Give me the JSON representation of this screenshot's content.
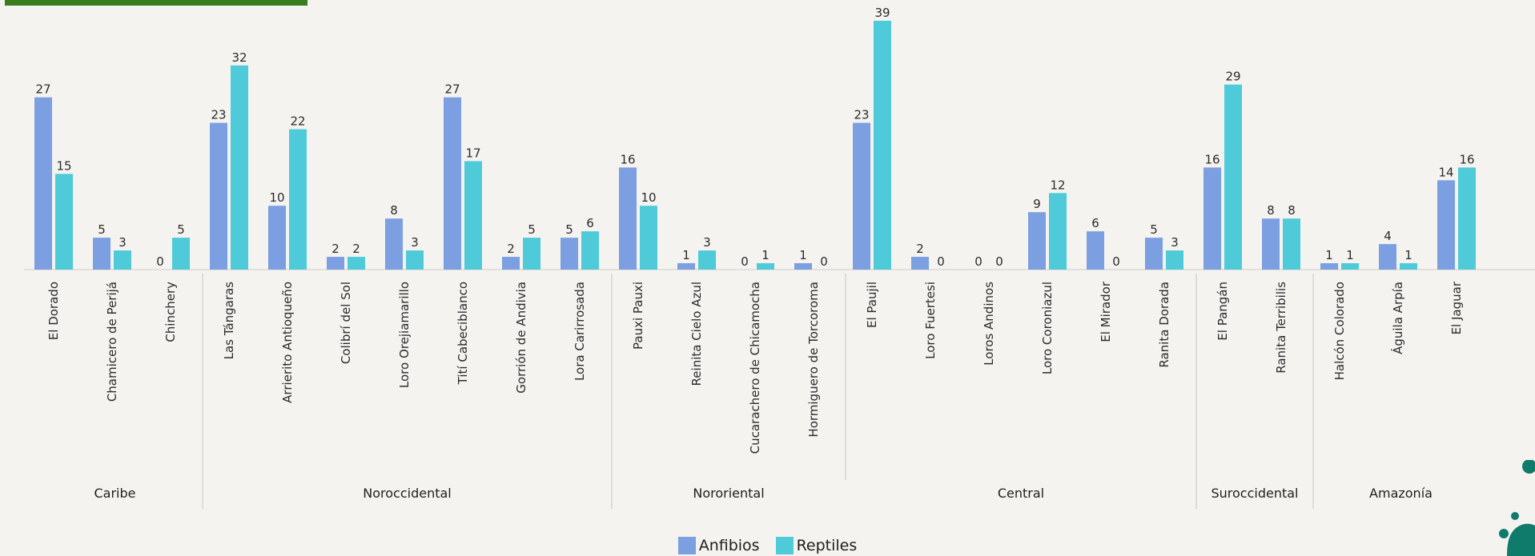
{
  "chart_data": {
    "type": "bar",
    "y_range": [
      0,
      41
    ],
    "grid": false,
    "legend_position": "bottom-center",
    "categories": [
      "El Dorado",
      "Chamicero de Perijá",
      "Chinchery",
      "Las Tángaras",
      "Arrierito Antioqueño",
      "Colibrí del Sol",
      "Loro Orejiamarillo",
      "Tití Cabeciblanco",
      "Gorrión de Andivia",
      "Lora Carirrosada",
      "Pauxi Pauxi",
      "Reinita Cielo Azul",
      "Cucarachero de Chicamocha",
      "Hormiguero de Torcoroma",
      "El Paujil",
      "Loro Fuertesi",
      "Loros Andinos",
      "Loro Coroniazul",
      "El Mirador",
      "Ranita Dorada",
      "El Pangán",
      "Ranita Terribilis",
      "Halcón Colorado",
      "Águila Arpía",
      "El Jaguar"
    ],
    "groups": [
      {
        "name": "Caribe",
        "count": 3
      },
      {
        "name": "Noroccidental",
        "count": 7
      },
      {
        "name": "Nororiental",
        "count": 4
      },
      {
        "name": "Central",
        "count": 6
      },
      {
        "name": "Suroccidental",
        "count": 2
      },
      {
        "name": "Amazonía",
        "count": 3
      }
    ],
    "series": [
      {
        "name": "Anfibios",
        "color": "#7b9fe0",
        "values": [
          27,
          5,
          0,
          23,
          10,
          2,
          8,
          27,
          2,
          5,
          16,
          1,
          0,
          1,
          23,
          2,
          0,
          9,
          6,
          5,
          16,
          8,
          1,
          4,
          14
        ]
      },
      {
        "name": "Reptiles",
        "color": "#4ecad9",
        "values": [
          15,
          3,
          5,
          32,
          22,
          2,
          3,
          17,
          5,
          6,
          10,
          3,
          1,
          0,
          39,
          0,
          0,
          12,
          0,
          3,
          29,
          8,
          1,
          1,
          16
        ]
      }
    ]
  }
}
